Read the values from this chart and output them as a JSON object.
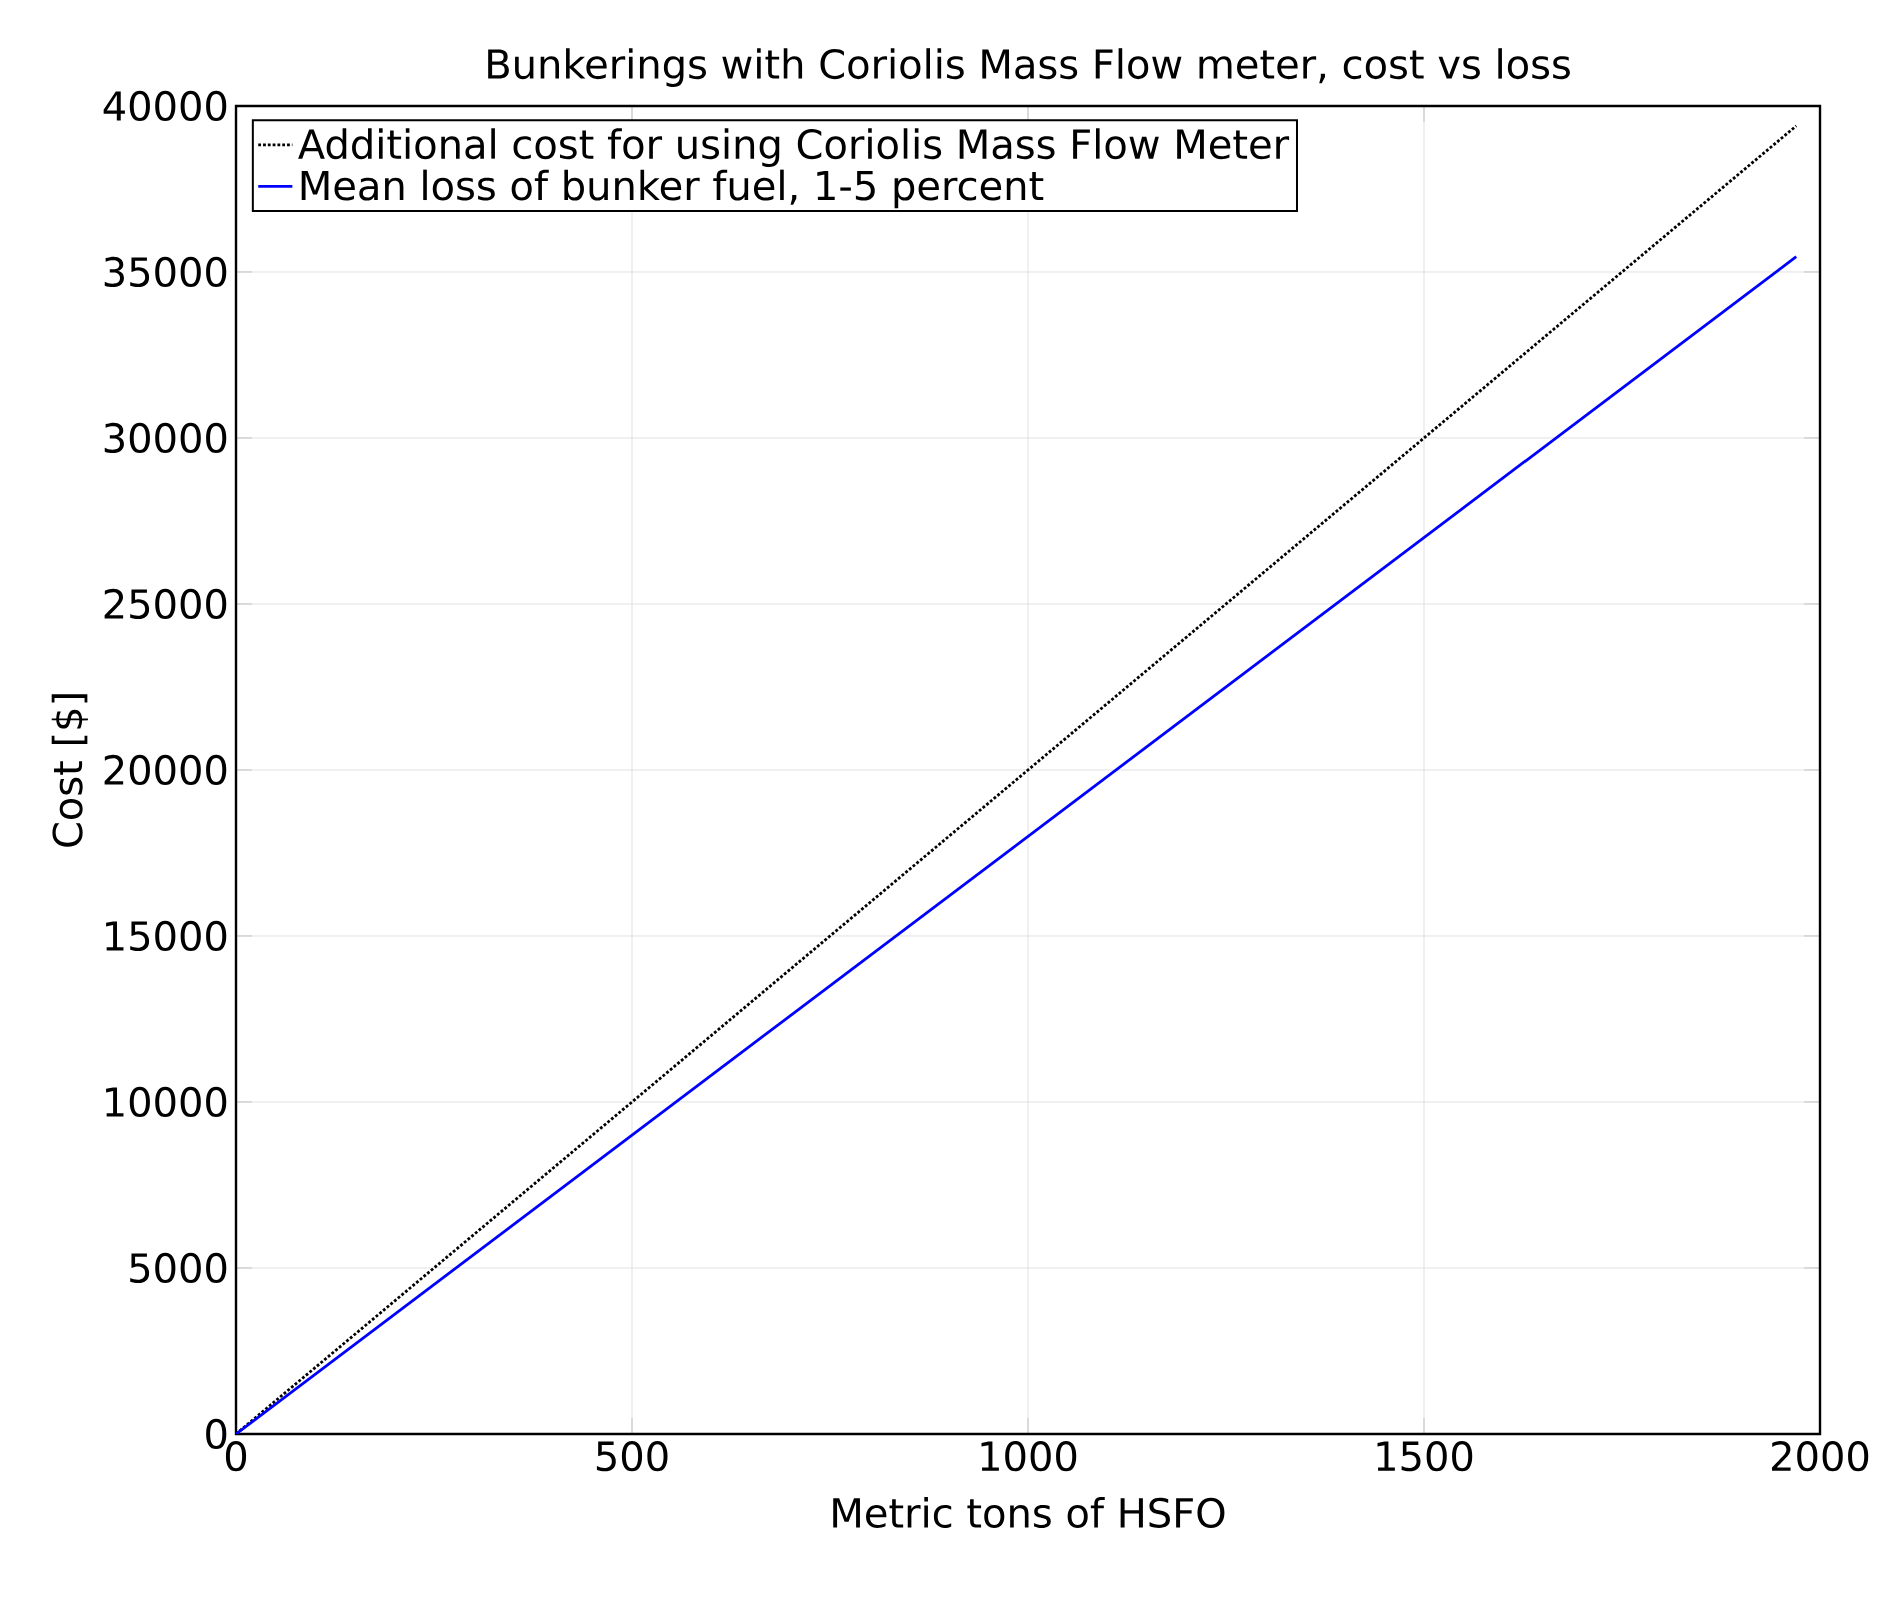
{
  "chart_data": {
    "type": "line",
    "title": "Bunkerings with Coriolis Mass Flow meter, cost vs loss",
    "xlabel": "Metric tons of HSFO",
    "ylabel": "Cost [$]",
    "x": [
      0,
      1970
    ],
    "series": [
      {
        "name": "Additional cost for using Coriolis Mass Flow Meter",
        "color": "#000000",
        "line_style": "dotted",
        "values": [
          0,
          39400
        ]
      },
      {
        "name": "Mean loss of bunker fuel, 1-5 percent",
        "color": "#0000ff",
        "line_style": "solid",
        "values": [
          0,
          35460
        ]
      }
    ],
    "xlim": [
      0,
      2000
    ],
    "xticks": [
      0,
      500,
      1000,
      1500,
      2000
    ],
    "ylim": [
      0,
      40000
    ],
    "yticks": [
      0,
      5000,
      10000,
      15000,
      20000,
      25000,
      30000,
      35000,
      40000
    ],
    "grid": true,
    "legend": "top left",
    "marker": "none"
  }
}
